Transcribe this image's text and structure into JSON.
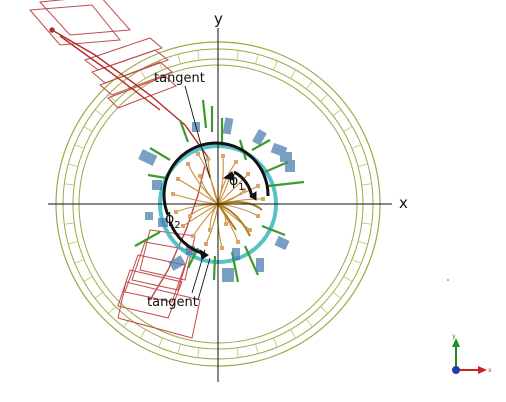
{
  "diagram": {
    "labels": {
      "y_axis": "y",
      "x_axis": "x",
      "tangent_top": "tangent",
      "tangent_bottom": "tangent",
      "phi1": "ϕ",
      "phi1_sub": "1",
      "phi2": "ϕ",
      "phi2_sub": "2"
    },
    "colors": {
      "axis": "#111111",
      "outer_ring": "#9aab45",
      "inner_ring": "#38b7c0",
      "hits_blue": "#4d7fb0",
      "hits_green": "#3f9a2e",
      "tracks_orange": "#c8913b",
      "track_red": "#b32a2a",
      "module_red": "#c24a4a",
      "arc_black": "#111111",
      "triad_green": "#1f8f1f",
      "triad_red": "#cc2222",
      "triad_blue": "#1f3fa8"
    }
  }
}
